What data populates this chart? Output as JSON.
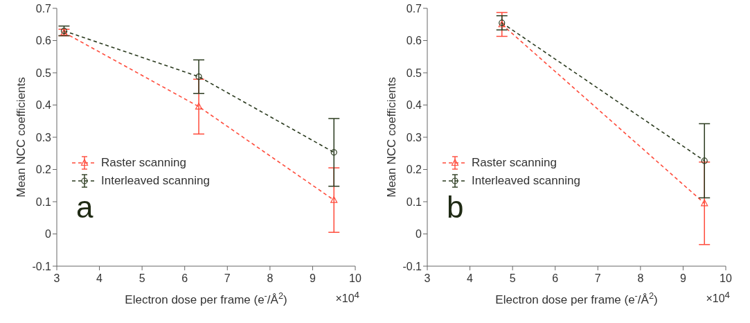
{
  "chart_data": [
    {
      "type": "line",
      "xlabel": "Electron dose per frame (e$^{-}$/Å$^{2}$)",
      "ylabel": "Mean NCC coefficients",
      "annotations": [
        "a",
        "×10$^{4}$"
      ],
      "x": [
        3.17,
        6.33,
        9.5
      ],
      "xlim": [
        3,
        10
      ],
      "xticks": [
        3,
        4,
        5,
        6,
        7,
        8,
        9,
        10
      ],
      "ylim": [
        -0.1,
        0.7
      ],
      "yticks": [
        -0.1,
        0,
        0.1,
        0.2,
        0.3,
        0.4,
        0.5,
        0.6,
        0.7
      ],
      "grid": false,
      "legend": "left",
      "line_style": "dashed",
      "series": [
        {
          "name": "Raster scanning",
          "color": "#ff4a3a",
          "marker": "triangle",
          "values": [
            0.625,
            0.395,
            0.105
          ],
          "errors": [
            0.01,
            0.085,
            0.1
          ]
        },
        {
          "name": "Interleaved scanning",
          "color": "#2a3a1e",
          "marker": "circle",
          "values": [
            0.63,
            0.488,
            0.253
          ],
          "errors": [
            0.015,
            0.052,
            0.105
          ]
        }
      ]
    },
    {
      "type": "line",
      "xlabel": "Electron dose per frame (e$^{-}$/Å$^{2}$)",
      "ylabel": "Mean NCC coefficients",
      "annotations": [
        "b",
        "×10$^{4}$"
      ],
      "x": [
        4.75,
        9.5
      ],
      "xlim": [
        3,
        10
      ],
      "xticks": [
        3,
        4,
        5,
        6,
        7,
        8,
        9,
        10
      ],
      "ylim": [
        -0.1,
        0.7
      ],
      "yticks": [
        -0.1,
        0,
        0.1,
        0.2,
        0.3,
        0.4,
        0.5,
        0.6,
        0.7
      ],
      "grid": false,
      "legend": "left",
      "line_style": "dashed",
      "series": [
        {
          "name": "Raster scanning",
          "color": "#ff4a3a",
          "marker": "triangle",
          "values": [
            0.65,
            0.095
          ],
          "errors": [
            0.037,
            0.128
          ]
        },
        {
          "name": "Interleaved scanning",
          "color": "#2a3a1e",
          "marker": "circle",
          "values": [
            0.655,
            0.227
          ],
          "errors": [
            0.022,
            0.115
          ]
        }
      ]
    }
  ]
}
